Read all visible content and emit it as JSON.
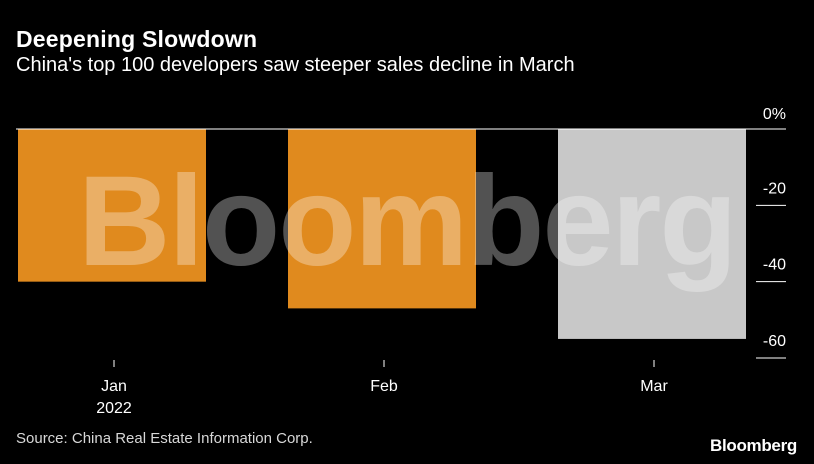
{
  "title": "Deepening Slowdown",
  "subtitle": "China's top 100 developers saw steeper sales decline in March",
  "source": "Source: China Real Estate Information Corp.",
  "brand": "Bloomberg",
  "watermark": "Bloomberg",
  "colors": {
    "background": "#000000",
    "bar_primary": "#e08a1e",
    "bar_highlight": "#c8c8c8",
    "text": "#ffffff"
  },
  "chart_data": {
    "type": "bar",
    "categories": [
      "Jan",
      "Feb",
      "Mar"
    ],
    "category_sublabels": [
      "2022",
      "",
      ""
    ],
    "values": [
      -40.0,
      -47.0,
      -55.0
    ],
    "bar_colors": [
      "#e08a1e",
      "#e08a1e",
      "#c8c8c8"
    ],
    "ylim": [
      -60,
      0
    ],
    "yticks": [
      0,
      -20,
      -40,
      -60
    ],
    "ytick_labels": [
      "0%",
      "-20",
      "-40",
      "-60"
    ],
    "y_axis_position": "right",
    "grid": false
  }
}
